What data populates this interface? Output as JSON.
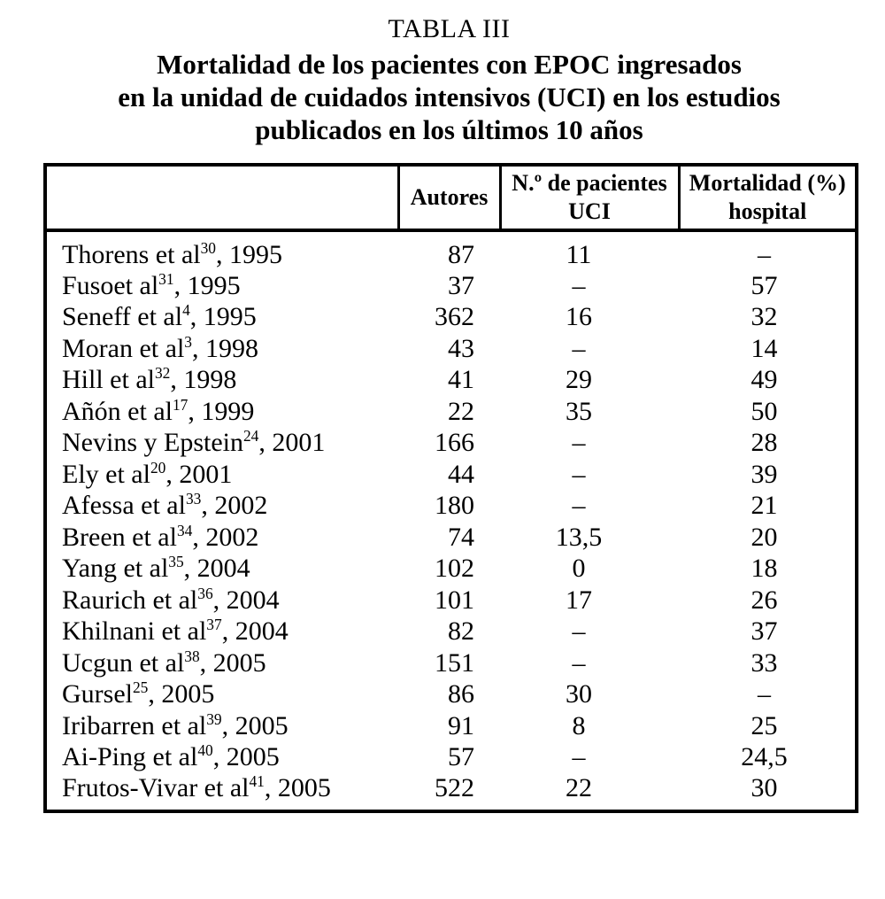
{
  "title": {
    "label": "TABLA III",
    "heading_lines": [
      "Mortalidad de los pacientes con EPOC ingresados",
      "en la unidad de cuidados intensivos (UCI) en los estudios",
      "publicados en los últimos 10 años"
    ]
  },
  "table": {
    "columns": [
      {
        "line1": ""
      },
      {
        "line1": "Autores"
      },
      {
        "line1": "N.º de pacientes",
        "line2": "UCI"
      },
      {
        "line1": "Mortalidad (%)",
        "line2": "hospital"
      }
    ],
    "rows": [
      {
        "study": "Thorens et al",
        "ref": "30",
        "year": "1995",
        "autores": "87",
        "pacientes_uci": "11",
        "mortalidad_hospital": "–"
      },
      {
        "study": "Fusoet al",
        "ref": "31",
        "year": "1995",
        "autores": "37",
        "pacientes_uci": "–",
        "mortalidad_hospital": "57"
      },
      {
        "study": "Seneff et al",
        "ref": "4",
        "year": "1995",
        "autores": "362",
        "pacientes_uci": "16",
        "mortalidad_hospital": "32"
      },
      {
        "study": "Moran et al",
        "ref": "3",
        "year": "1998",
        "autores": "43",
        "pacientes_uci": "–",
        "mortalidad_hospital": "14"
      },
      {
        "study": "Hill et al",
        "ref": "32",
        "year": "1998",
        "autores": "41",
        "pacientes_uci": "29",
        "mortalidad_hospital": "49"
      },
      {
        "study": "Añón et al",
        "ref": "17",
        "year": "1999",
        "autores": "22",
        "pacientes_uci": "35",
        "mortalidad_hospital": "50"
      },
      {
        "study": "Nevins y Epstein",
        "ref": "24",
        "year": "2001",
        "autores": "166",
        "pacientes_uci": "–",
        "mortalidad_hospital": "28"
      },
      {
        "study": "Ely et al",
        "ref": "20",
        "year": "2001",
        "autores": "44",
        "pacientes_uci": "–",
        "mortalidad_hospital": "39"
      },
      {
        "study": "Afessa et al",
        "ref": "33",
        "year": "2002",
        "autores": "180",
        "pacientes_uci": "–",
        "mortalidad_hospital": "21"
      },
      {
        "study": "Breen et al",
        "ref": "34",
        "year": "2002",
        "autores": "74",
        "pacientes_uci": "13,5",
        "mortalidad_hospital": "20"
      },
      {
        "study": "Yang et al",
        "ref": "35",
        "year": "2004",
        "autores": "102",
        "pacientes_uci": "0",
        "mortalidad_hospital": "18"
      },
      {
        "study": "Raurich et al",
        "ref": "36",
        "year": "2004",
        "autores": "101",
        "pacientes_uci": "17",
        "mortalidad_hospital": "26"
      },
      {
        "study": "Khilnani et al",
        "ref": "37",
        "year": "2004",
        "autores": "82",
        "pacientes_uci": "–",
        "mortalidad_hospital": "37"
      },
      {
        "study": "Ucgun et al",
        "ref": "38",
        "year": "2005",
        "autores": "151",
        "pacientes_uci": "–",
        "mortalidad_hospital": "33"
      },
      {
        "study": "Gursel",
        "ref": "25",
        "year": "2005",
        "autores": "86",
        "pacientes_uci": "30",
        "mortalidad_hospital": "–"
      },
      {
        "study": "Iribarren et al",
        "ref": "39",
        "year": "2005",
        "autores": "91",
        "pacientes_uci": "8",
        "mortalidad_hospital": "25"
      },
      {
        "study": "Ai-Ping et al",
        "ref": "40",
        "year": "2005",
        "autores": "57",
        "pacientes_uci": "–",
        "mortalidad_hospital": "24,5"
      },
      {
        "study": "Frutos-Vivar et al",
        "ref": "41",
        "year": "2005",
        "autores": "522",
        "pacientes_uci": "22",
        "mortalidad_hospital": "30"
      }
    ]
  }
}
